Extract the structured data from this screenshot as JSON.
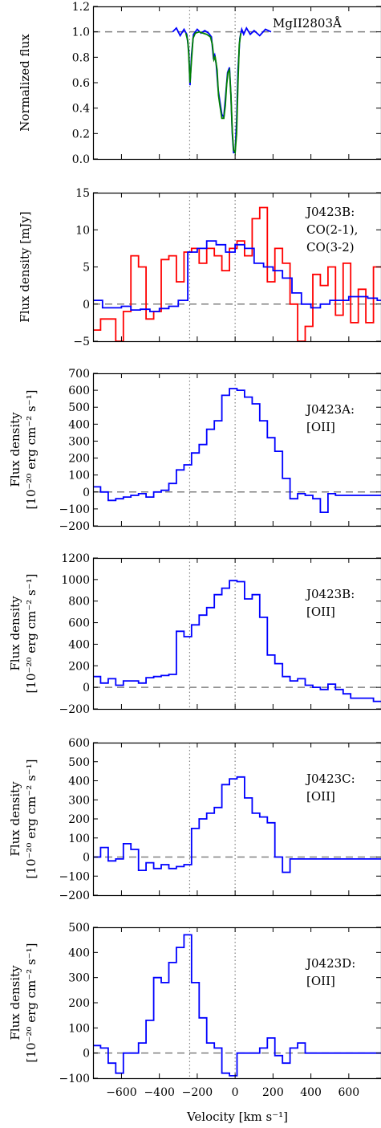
{
  "xlabel": "Velocity [km s⁻¹]",
  "chart_data": [
    {
      "type": "line",
      "ylabel": "Normalized flux",
      "ylim": [
        0.0,
        1.2
      ],
      "yticks": [
        0.0,
        0.2,
        0.4,
        0.6,
        0.8,
        1.0,
        1.2
      ],
      "ytick_labels": [
        "0.0",
        "0.2",
        "0.4",
        "0.6",
        "0.8",
        "1.0",
        "1.2"
      ],
      "xlim": [
        -750,
        770
      ],
      "annotation": [
        "MgII2803Å"
      ],
      "reference_line": 1.0,
      "vlines": [
        -240,
        0
      ],
      "series": [
        {
          "color": "#0000ff",
          "steps": false,
          "x": [
            -330,
            -310,
            -290,
            -270,
            -255,
            -245,
            -238,
            -230,
            -220,
            -200,
            -180,
            -160,
            -140,
            -125,
            -115,
            -108,
            -100,
            -90,
            -80,
            -70,
            -60,
            -50,
            -40,
            -30,
            -22,
            -15,
            -8,
            0,
            8,
            15,
            25,
            35,
            45,
            60,
            80,
            100,
            130,
            160,
            190
          ],
          "y": [
            1.0,
            1.03,
            0.97,
            1.02,
            0.98,
            0.85,
            0.58,
            0.82,
            0.98,
            1.02,
            0.99,
            1.01,
            0.99,
            0.96,
            0.8,
            0.82,
            0.75,
            0.55,
            0.45,
            0.35,
            0.33,
            0.5,
            0.68,
            0.72,
            0.5,
            0.2,
            0.05,
            0.05,
            0.3,
            0.7,
            0.95,
            1.02,
            0.98,
            1.03,
            0.98,
            1.01,
            0.97,
            1.02,
            1.0
          ]
        },
        {
          "color": "#008000",
          "steps": false,
          "x": [
            -260,
            -250,
            -245,
            -238,
            -230,
            -222,
            -210,
            -190,
            -170,
            -150,
            -130,
            -120,
            -112,
            -105,
            -95,
            -88,
            -80,
            -70,
            -60,
            -52,
            -45,
            -38,
            -30,
            -22,
            -15,
            -8,
            0,
            8,
            15,
            22,
            30
          ],
          "y": [
            0.99,
            0.93,
            0.82,
            0.6,
            0.78,
            0.95,
            0.99,
            1.0,
            0.99,
            0.98,
            0.96,
            0.9,
            0.78,
            0.8,
            0.7,
            0.5,
            0.42,
            0.32,
            0.32,
            0.42,
            0.58,
            0.68,
            0.7,
            0.5,
            0.22,
            0.07,
            0.05,
            0.2,
            0.6,
            0.9,
            0.99
          ]
        }
      ]
    },
    {
      "type": "line",
      "ylabel": "Flux density [mJy]",
      "ylim": [
        -5,
        15
      ],
      "yticks": [
        -5,
        0,
        5,
        10,
        15
      ],
      "ytick_labels": [
        "−5",
        "0",
        "5",
        "10",
        "15"
      ],
      "xlim": [
        -750,
        770
      ],
      "annotation": [
        "J0423B:",
        "CO(2-1),",
        "CO(3-2)"
      ],
      "reference_line": 0,
      "vlines": [
        -240,
        0
      ],
      "series": [
        {
          "color": "#ff0000",
          "steps": true,
          "x": [
            -750,
            -710,
            -670,
            -630,
            -590,
            -550,
            -510,
            -470,
            -430,
            -390,
            -350,
            -310,
            -270,
            -230,
            -190,
            -150,
            -110,
            -70,
            -30,
            10,
            50,
            90,
            130,
            170,
            210,
            250,
            290,
            330,
            370,
            410,
            450,
            490,
            530,
            570,
            610,
            650,
            690,
            730,
            770
          ],
          "y": [
            -3.5,
            -2,
            -2,
            -5,
            -1,
            6.5,
            5,
            -2,
            -1,
            6,
            6.5,
            3,
            7,
            7.5,
            5.5,
            7.5,
            6.5,
            4.5,
            7.5,
            8.5,
            6.5,
            11.5,
            13,
            3,
            7.5,
            5.5,
            0,
            -5,
            -3,
            4,
            2.5,
            5,
            -1.5,
            5.5,
            -2.5,
            2,
            -2.5,
            5,
            5
          ]
        },
        {
          "color": "#0000ff",
          "steps": true,
          "x": [
            -750,
            -700,
            -650,
            -600,
            -550,
            -500,
            -450,
            -400,
            -350,
            -300,
            -250,
            -200,
            -150,
            -100,
            -50,
            0,
            50,
            100,
            150,
            200,
            250,
            300,
            350,
            400,
            450,
            500,
            550,
            600,
            650,
            700,
            750,
            770
          ],
          "y": [
            0.5,
            -0.5,
            -0.5,
            -0.3,
            -0.8,
            -0.7,
            -1,
            -0.6,
            -0.3,
            0.5,
            7,
            7.5,
            8.5,
            8,
            7,
            8,
            7.5,
            5.5,
            5,
            4.5,
            3.5,
            1.5,
            0,
            -0.5,
            0,
            0.5,
            0.5,
            1,
            1,
            0.8,
            0.5,
            0.5
          ]
        }
      ]
    },
    {
      "type": "line",
      "ylabel": "Flux density",
      "ylabel2": "[10⁻²⁰ erg cm⁻² s⁻¹]",
      "ylim": [
        -200,
        700
      ],
      "yticks": [
        -200,
        -100,
        0,
        100,
        200,
        300,
        400,
        500,
        600,
        700
      ],
      "ytick_labels": [
        "−200",
        "−100",
        "0",
        "100",
        "200",
        "300",
        "400",
        "500",
        "600",
        "700"
      ],
      "xlim": [
        -750,
        770
      ],
      "annotation": [
        "J0423A:",
        "[OII]"
      ],
      "reference_line": 0,
      "vlines": [
        -240,
        0
      ],
      "series": [
        {
          "color": "#0000ff",
          "steps": true,
          "x": [
            -750,
            -710,
            -670,
            -630,
            -590,
            -550,
            -510,
            -470,
            -430,
            -390,
            -350,
            -310,
            -270,
            -230,
            -190,
            -150,
            -110,
            -70,
            -30,
            10,
            50,
            90,
            130,
            170,
            210,
            250,
            290,
            330,
            370,
            410,
            450,
            490,
            530,
            570,
            610,
            650,
            690,
            730,
            770
          ],
          "y": [
            30,
            0,
            -50,
            -40,
            -30,
            -20,
            -10,
            -30,
            0,
            10,
            50,
            130,
            160,
            230,
            280,
            370,
            420,
            570,
            610,
            600,
            560,
            520,
            420,
            320,
            240,
            80,
            -40,
            -10,
            -20,
            -40,
            -120,
            -10,
            -20,
            -20,
            -20,
            -20,
            -20,
            -20,
            -20
          ]
        }
      ]
    },
    {
      "type": "line",
      "ylabel": "Flux density",
      "ylabel2": "[10⁻²⁰ erg cm⁻² s⁻¹]",
      "ylim": [
        -200,
        1200
      ],
      "yticks": [
        -200,
        0,
        200,
        400,
        600,
        800,
        1000,
        1200
      ],
      "ytick_labels": [
        "−200",
        "0",
        "200",
        "400",
        "600",
        "800",
        "1000",
        "1200"
      ],
      "xlim": [
        -750,
        770
      ],
      "annotation": [
        "J0423B:",
        "[OII]"
      ],
      "reference_line": 0,
      "vlines": [
        -240,
        0
      ],
      "series": [
        {
          "color": "#0000ff",
          "steps": true,
          "x": [
            -750,
            -710,
            -670,
            -630,
            -590,
            -550,
            -510,
            -470,
            -430,
            -390,
            -350,
            -310,
            -270,
            -230,
            -190,
            -150,
            -110,
            -70,
            -30,
            10,
            50,
            90,
            130,
            170,
            210,
            250,
            290,
            330,
            370,
            410,
            450,
            490,
            530,
            570,
            610,
            650,
            690,
            730,
            770
          ],
          "y": [
            100,
            40,
            80,
            20,
            60,
            60,
            40,
            90,
            100,
            110,
            120,
            520,
            470,
            580,
            670,
            740,
            860,
            920,
            990,
            980,
            820,
            860,
            650,
            300,
            220,
            100,
            60,
            80,
            20,
            0,
            -20,
            30,
            -20,
            -60,
            -100,
            -100,
            -100,
            -130,
            -130
          ]
        }
      ]
    },
    {
      "type": "line",
      "ylabel": "Flux density",
      "ylabel2": "[10⁻²⁰ erg cm⁻² s⁻¹]",
      "ylim": [
        -200,
        600
      ],
      "yticks": [
        -200,
        -100,
        0,
        100,
        200,
        300,
        400,
        500,
        600
      ],
      "ytick_labels": [
        "−200",
        "−100",
        "0",
        "100",
        "200",
        "300",
        "400",
        "500",
        "600"
      ],
      "xlim": [
        -750,
        770
      ],
      "annotation": [
        "J0423C:",
        "[OII]"
      ],
      "reference_line": 0,
      "vlines": [
        -240,
        0
      ],
      "series": [
        {
          "color": "#0000ff",
          "steps": true,
          "x": [
            -750,
            -710,
            -670,
            -630,
            -590,
            -550,
            -510,
            -470,
            -430,
            -390,
            -350,
            -310,
            -270,
            -230,
            -190,
            -150,
            -110,
            -70,
            -30,
            10,
            50,
            90,
            130,
            170,
            210,
            250,
            290,
            330,
            370,
            410,
            450,
            490,
            530,
            570,
            610,
            650,
            690,
            730,
            770
          ],
          "y": [
            0,
            50,
            -20,
            -10,
            70,
            40,
            -70,
            -30,
            -60,
            -40,
            -60,
            -50,
            -40,
            150,
            200,
            230,
            260,
            380,
            410,
            420,
            310,
            230,
            210,
            180,
            0,
            -80,
            -10,
            -10,
            -10,
            -10,
            -10,
            -10,
            -10,
            -10,
            -10,
            -10,
            -10,
            -10,
            -10
          ]
        }
      ]
    },
    {
      "type": "line",
      "ylabel": "Flux density",
      "ylabel2": "[10⁻²⁰ erg cm⁻² s⁻¹]",
      "ylim": [
        -100,
        500
      ],
      "yticks": [
        -100,
        0,
        100,
        200,
        300,
        400,
        500
      ],
      "ytick_labels": [
        "−100",
        "0",
        "100",
        "200",
        "300",
        "400",
        "500"
      ],
      "xlim": [
        -750,
        770
      ],
      "xticks": [
        -600,
        -400,
        -200,
        0,
        200,
        400,
        600
      ],
      "xtick_labels": [
        "−600",
        "−400",
        "−200",
        "0",
        "200",
        "400",
        "600"
      ],
      "annotation": [
        "J0423D:",
        "[OII]"
      ],
      "reference_line": 0,
      "vlines": [
        -240,
        0
      ],
      "series": [
        {
          "color": "#0000ff",
          "steps": true,
          "x": [
            -750,
            -710,
            -670,
            -630,
            -590,
            -550,
            -510,
            -470,
            -430,
            -390,
            -350,
            -310,
            -270,
            -230,
            -190,
            -150,
            -110,
            -70,
            -30,
            10,
            50,
            90,
            130,
            170,
            210,
            250,
            290,
            330,
            370,
            410,
            450,
            490,
            530,
            570,
            610,
            650,
            690,
            730,
            770
          ],
          "y": [
            30,
            20,
            -40,
            -80,
            0,
            0,
            40,
            130,
            300,
            280,
            360,
            420,
            470,
            280,
            140,
            40,
            20,
            -80,
            -90,
            0,
            0,
            0,
            20,
            60,
            -10,
            -40,
            20,
            40,
            0,
            0,
            0,
            0,
            0,
            0,
            0,
            0,
            0,
            0,
            0
          ]
        }
      ]
    }
  ]
}
